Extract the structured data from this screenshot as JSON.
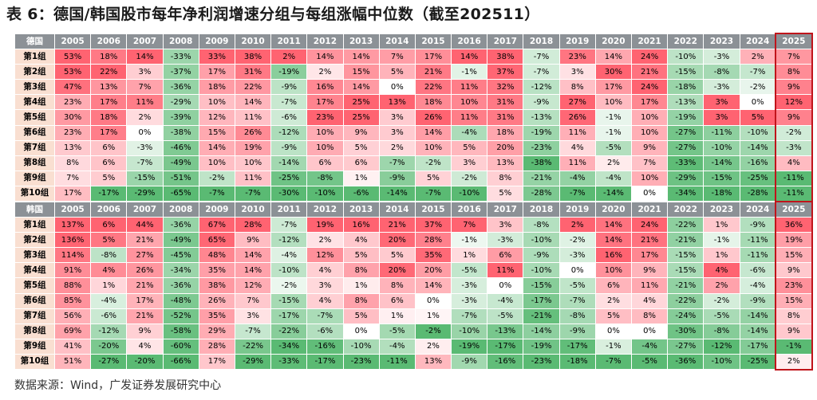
{
  "title": "表 6：德国/韩国股市每年净利润增速分组与每组涨幅中位数（截至202511）",
  "source": "数据来源：Wind，广发证券发展研究中心",
  "colors": {
    "header_bg": "#8c9196",
    "row_label_bg": "#f9dfd1",
    "positive": "#f0506a",
    "negative": "#53b067",
    "highlight_border": "#c0141b"
  },
  "years": [
    "2005",
    "2006",
    "2007",
    "2008",
    "2009",
    "2010",
    "2011",
    "2012",
    "2013",
    "2014",
    "2015",
    "2016",
    "2017",
    "2018",
    "2019",
    "2020",
    "2021",
    "2022",
    "2023",
    "2024",
    "2025"
  ],
  "tables": [
    {
      "country": "德国",
      "rows": [
        {
          "label": "第1组",
          "values": [
            "53%",
            "18%",
            "14%",
            "-33%",
            "33%",
            "38%",
            "2%",
            "14%",
            "14%",
            "7%",
            "17%",
            "14%",
            "38%",
            "-7%",
            "23%",
            "14%",
            "24%",
            "-10%",
            "-3%",
            "2%",
            "7%"
          ]
        },
        {
          "label": "第2组",
          "values": [
            "53%",
            "22%",
            "3%",
            "-37%",
            "17%",
            "31%",
            "-19%",
            "2%",
            "15%",
            "5%",
            "21%",
            "-1%",
            "37%",
            "-7%",
            "3%",
            "30%",
            "21%",
            "-15%",
            "-8%",
            "-7%",
            "8%"
          ]
        },
        {
          "label": "第3组",
          "values": [
            "47%",
            "13%",
            "7%",
            "-36%",
            "18%",
            "22%",
            "-9%",
            "16%",
            "14%",
            "0%",
            "22%",
            "11%",
            "32%",
            "-12%",
            "8%",
            "17%",
            "24%",
            "-18%",
            "-3%",
            "-2%",
            "9%"
          ]
        },
        {
          "label": "第4组",
          "values": [
            "23%",
            "17%",
            "11%",
            "-29%",
            "10%",
            "14%",
            "-7%",
            "17%",
            "25%",
            "13%",
            "18%",
            "10%",
            "31%",
            "-9%",
            "27%",
            "10%",
            "17%",
            "-13%",
            "3%",
            "0%",
            "12%"
          ]
        },
        {
          "label": "第5组",
          "values": [
            "30%",
            "18%",
            "2%",
            "-39%",
            "12%",
            "11%",
            "-6%",
            "23%",
            "25%",
            "3%",
            "26%",
            "11%",
            "31%",
            "-13%",
            "26%",
            "-1%",
            "10%",
            "-19%",
            "3%",
            "5%",
            "9%"
          ]
        },
        {
          "label": "第6组",
          "values": [
            "23%",
            "17%",
            "0%",
            "-38%",
            "15%",
            "26%",
            "-12%",
            "10%",
            "9%",
            "3%",
            "14%",
            "-4%",
            "18%",
            "-19%",
            "11%",
            "-1%",
            "10%",
            "-27%",
            "-11%",
            "-10%",
            "-2%"
          ]
        },
        {
          "label": "第7组",
          "values": [
            "13%",
            "6%",
            "-3%",
            "-46%",
            "14%",
            "19%",
            "-9%",
            "10%",
            "5%",
            "2%",
            "10%",
            "5%",
            "20%",
            "-23%",
            "4%",
            "-5%",
            "9%",
            "-27%",
            "-10%",
            "-14%",
            "-3%"
          ]
        },
        {
          "label": "第8组",
          "values": [
            "8%",
            "6%",
            "-7%",
            "-49%",
            "10%",
            "10%",
            "-14%",
            "6%",
            "6%",
            "-7%",
            "-2%",
            "3%",
            "13%",
            "-38%",
            "11%",
            "2%",
            "7%",
            "-33%",
            "-14%",
            "-16%",
            "4%"
          ]
        },
        {
          "label": "第9组",
          "values": [
            "7%",
            "5%",
            "-15%",
            "-51%",
            "-2%",
            "11%",
            "-25%",
            "-8%",
            "1%",
            "-9%",
            "5%",
            "-2%",
            "8%",
            "-21%",
            "-4%",
            "-4%",
            "10%",
            "-29%",
            "-15%",
            "-25%",
            "-11%"
          ]
        },
        {
          "label": "第10组",
          "values": [
            "17%",
            "-17%",
            "-29%",
            "-65%",
            "-7%",
            "-7%",
            "-30%",
            "-10%",
            "-6%",
            "-14%",
            "-7%",
            "-10%",
            "5%",
            "-28%",
            "-7%",
            "-14%",
            "0%",
            "-34%",
            "-18%",
            "-28%",
            "-11%"
          ]
        }
      ]
    },
    {
      "country": "韩国",
      "rows": [
        {
          "label": "第1组",
          "values": [
            "137%",
            "6%",
            "44%",
            "-36%",
            "67%",
            "28%",
            "-7%",
            "19%",
            "16%",
            "21%",
            "37%",
            "7%",
            "3%",
            "-8%",
            "2%",
            "14%",
            "24%",
            "-22%",
            "1%",
            "-9%",
            "36%"
          ]
        },
        {
          "label": "第2组",
          "values": [
            "136%",
            "5%",
            "21%",
            "-49%",
            "65%",
            "9%",
            "-12%",
            "2%",
            "4%",
            "20%",
            "28%",
            "-1%",
            "-3%",
            "-10%",
            "-2%",
            "14%",
            "21%",
            "-21%",
            "-1%",
            "-11%",
            "19%"
          ]
        },
        {
          "label": "第3组",
          "values": [
            "114%",
            "-8%",
            "27%",
            "-45%",
            "48%",
            "14%",
            "-4%",
            "12%",
            "5%",
            "5%",
            "35%",
            "1%",
            "6%",
            "-9%",
            "-3%",
            "16%",
            "17%",
            "-15%",
            "1%",
            "-11%",
            "15%"
          ]
        },
        {
          "label": "第4组",
          "values": [
            "91%",
            "4%",
            "26%",
            "-34%",
            "35%",
            "14%",
            "-10%",
            "4%",
            "8%",
            "20%",
            "20%",
            "-5%",
            "11%",
            "-10%",
            "0%",
            "10%",
            "9%",
            "-15%",
            "4%",
            "-6%",
            "9%"
          ]
        },
        {
          "label": "第5组",
          "values": [
            "88%",
            "1%",
            "21%",
            "-36%",
            "38%",
            "12%",
            "-2%",
            "3%",
            "1%",
            "8%",
            "14%",
            "-3%",
            "0%",
            "-15%",
            "-5%",
            "6%",
            "11%",
            "-21%",
            "2%",
            "-4%",
            "23%"
          ]
        },
        {
          "label": "第6组",
          "values": [
            "85%",
            "-4%",
            "17%",
            "-48%",
            "26%",
            "7%",
            "-15%",
            "4%",
            "8%",
            "6%",
            "0%",
            "-3%",
            "-4%",
            "-17%",
            "-7%",
            "2%",
            "4%",
            "-22%",
            "-2%",
            "-9%",
            "15%"
          ]
        },
        {
          "label": "第7组",
          "values": [
            "56%",
            "-6%",
            "21%",
            "-52%",
            "35%",
            "3%",
            "-17%",
            "-7%",
            "5%",
            "1%",
            "1%",
            "-7%",
            "-5%",
            "-21%",
            "-8%",
            "5%",
            "8%",
            "-24%",
            "-5%",
            "-14%",
            "8%"
          ]
        },
        {
          "label": "第8组",
          "values": [
            "69%",
            "-12%",
            "9%",
            "-58%",
            "29%",
            "-7%",
            "-22%",
            "-6%",
            "0%",
            "-5%",
            "-2%",
            "-10%",
            "-13%",
            "-14%",
            "-9%",
            "0%",
            "0%",
            "-30%",
            "-8%",
            "-14%",
            "9%"
          ]
        },
        {
          "label": "第9组",
          "values": [
            "41%",
            "-20%",
            "4%",
            "-60%",
            "28%",
            "-22%",
            "-34%",
            "-16%",
            "-10%",
            "-4%",
            "2%",
            "-19%",
            "-17%",
            "-19%",
            "-17%",
            "-1%",
            "-4%",
            "-27%",
            "-12%",
            "-17%",
            "-1%"
          ]
        },
        {
          "label": "第10组",
          "values": [
            "51%",
            "-27%",
            "-20%",
            "-66%",
            "17%",
            "-29%",
            "-33%",
            "-17%",
            "-23%",
            "-11%",
            "13%",
            "-9%",
            "-16%",
            "-23%",
            "-18%",
            "-7%",
            "-5%",
            "-36%",
            "-10%",
            "-25%",
            "2%"
          ]
        }
      ]
    }
  ]
}
